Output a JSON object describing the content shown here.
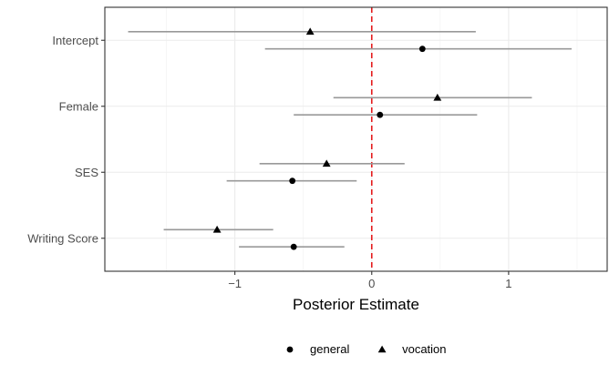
{
  "chart_data": {
    "type": "scatter",
    "title": "",
    "xlabel": "Posterior Estimate",
    "ylabel": "",
    "xlim": [
      -1.95,
      1.72
    ],
    "x_ticks": [
      {
        "value": -1,
        "label": "−1"
      },
      {
        "value": 0,
        "label": "0"
      },
      {
        "value": 1,
        "label": "1"
      }
    ],
    "x_minor_ticks": [
      -1.5,
      -0.5,
      0.5,
      1.5
    ],
    "categories": [
      "Intercept",
      "Female",
      "SES",
      "Writing Score"
    ],
    "reference_line": {
      "x": 0,
      "color": "#e41a1c",
      "style": "dashed"
    },
    "grid": true,
    "legend_position": "bottom",
    "series": [
      {
        "name": "general",
        "marker": "circle",
        "color": "#000000",
        "interval_color": "#999999",
        "points": [
          {
            "category": "Intercept",
            "estimate": 0.37,
            "low": -0.78,
            "high": 1.46
          },
          {
            "category": "Female",
            "estimate": 0.06,
            "low": -0.57,
            "high": 0.77
          },
          {
            "category": "SES",
            "estimate": -0.58,
            "low": -1.06,
            "high": -0.11
          },
          {
            "category": "Writing Score",
            "estimate": -0.57,
            "low": -0.97,
            "high": -0.2
          }
        ]
      },
      {
        "name": "vocation",
        "marker": "triangle",
        "color": "#000000",
        "interval_color": "#999999",
        "points": [
          {
            "category": "Intercept",
            "estimate": -0.45,
            "low": -1.78,
            "high": 0.76
          },
          {
            "category": "Female",
            "estimate": 0.48,
            "low": -0.28,
            "high": 1.17
          },
          {
            "category": "SES",
            "estimate": -0.33,
            "low": -0.82,
            "high": 0.24
          },
          {
            "category": "Writing Score",
            "estimate": -1.13,
            "low": -1.52,
            "high": -0.72
          }
        ]
      }
    ]
  }
}
